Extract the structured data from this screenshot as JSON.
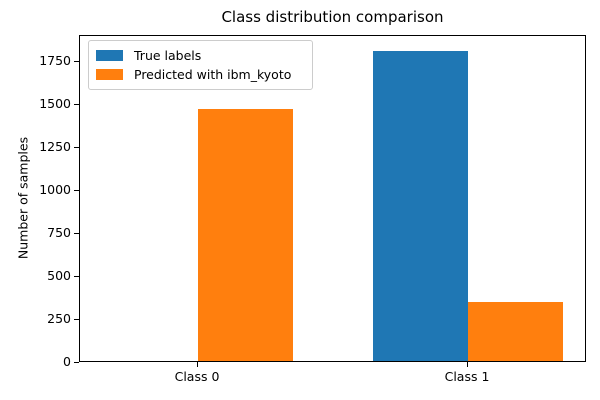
{
  "chart_data": {
    "type": "bar",
    "title": "Class distribution comparison",
    "xlabel": "",
    "ylabel": "Number of samples",
    "categories": [
      "Class 0",
      "Class 1"
    ],
    "series": [
      {
        "name": "True labels",
        "color": "#1f77b4",
        "values": [
          0,
          1800
        ]
      },
      {
        "name": "Predicted with ibm_kyoto",
        "color": "#ff7f0e",
        "values": [
          1465,
          340
        ]
      }
    ],
    "ylim": [
      0,
      1900
    ],
    "yticks": [
      0,
      250,
      500,
      750,
      1000,
      1250,
      1500,
      1750
    ],
    "grid": false,
    "legend_position": "upper left",
    "bar_orientation": "vertical"
  },
  "colors": {
    "background": "#ffffff",
    "spine": "#000000",
    "text": "#000000",
    "legend_border": "#cccccc"
  }
}
